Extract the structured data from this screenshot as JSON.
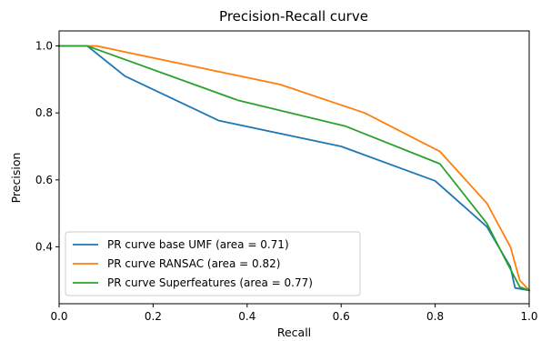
{
  "chart_data": {
    "type": "line",
    "title": "Precision-Recall curve",
    "xlabel": "Recall",
    "ylabel": "Precision",
    "xlim": [
      0.0,
      1.0
    ],
    "ylim": [
      0.23,
      1.045
    ],
    "xticks": [
      "0.0",
      "0.2",
      "0.4",
      "0.6",
      "0.8",
      "1.0"
    ],
    "yticks": [
      "0.4",
      "0.6",
      "0.8",
      "1.0"
    ],
    "grid": false,
    "legend_position": "lower-left",
    "series": [
      {
        "name": "PR curve base UMF (area = 0.71)",
        "color": "#1f77b4",
        "x": [
          0.0,
          0.06,
          0.14,
          0.34,
          0.6,
          0.8,
          0.91,
          0.96,
          0.97,
          1.0
        ],
        "y": [
          1.0,
          1.0,
          0.91,
          0.777,
          0.7,
          0.597,
          0.46,
          0.34,
          0.277,
          0.27
        ]
      },
      {
        "name": "PR curve RANSAC (area = 0.82)",
        "color": "#ff7f0e",
        "x": [
          0.0,
          0.08,
          0.47,
          0.65,
          0.81,
          0.91,
          0.96,
          0.98,
          1.0
        ],
        "y": [
          1.0,
          1.0,
          0.885,
          0.8,
          0.685,
          0.53,
          0.4,
          0.3,
          0.27
        ]
      },
      {
        "name": "PR curve Superfeatures (area = 0.77)",
        "color": "#2ca02c",
        "x": [
          0.0,
          0.06,
          0.38,
          0.61,
          0.81,
          0.91,
          0.95,
          0.98,
          1.0
        ],
        "y": [
          1.0,
          1.0,
          0.838,
          0.76,
          0.648,
          0.47,
          0.36,
          0.28,
          0.27
        ]
      }
    ]
  }
}
